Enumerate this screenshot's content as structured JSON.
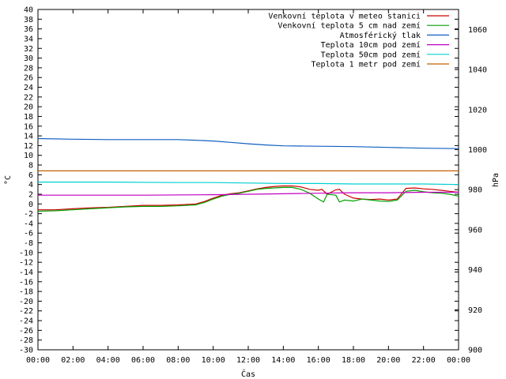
{
  "chart_data": {
    "type": "line",
    "xlabel": "Čas",
    "ylabel_left": "°C",
    "ylabel_right": "hPa",
    "x_ticks": [
      "00:00",
      "02:00",
      "04:00",
      "06:00",
      "08:00",
      "10:00",
      "12:00",
      "14:00",
      "16:00",
      "18:00",
      "20:00",
      "22:00",
      "00:00"
    ],
    "x_range_hours": [
      0,
      24
    ],
    "y_left_range": [
      -30,
      40
    ],
    "y_left_step": 2,
    "y_right_range": [
      900,
      1070
    ],
    "y_right_ticks": [
      900,
      920,
      940,
      960,
      980,
      1000,
      1020,
      1040,
      1060
    ],
    "grid": false,
    "legend_position": "top-right",
    "series": [
      {
        "name": "Venkovní teplota v meteo stanici",
        "color": "#cc0000",
        "axis": "left",
        "points": [
          [
            0,
            -1.2
          ],
          [
            1,
            -1.2
          ],
          [
            2,
            -1.0
          ],
          [
            3,
            -0.8
          ],
          [
            4,
            -0.7
          ],
          [
            5,
            -0.5
          ],
          [
            6,
            -0.3
          ],
          [
            7,
            -0.3
          ],
          [
            8,
            -0.2
          ],
          [
            9,
            0.0
          ],
          [
            9.5,
            0.5
          ],
          [
            10,
            1.2
          ],
          [
            10.5,
            1.8
          ],
          [
            11,
            2.1
          ],
          [
            11.5,
            2.3
          ],
          [
            12,
            2.7
          ],
          [
            12.5,
            3.1
          ],
          [
            13,
            3.4
          ],
          [
            13.5,
            3.6
          ],
          [
            14,
            3.7
          ],
          [
            14.5,
            3.7
          ],
          [
            15,
            3.5
          ],
          [
            15.5,
            3.0
          ],
          [
            16,
            2.8
          ],
          [
            16.2,
            3.0
          ],
          [
            16.5,
            2.0
          ],
          [
            17,
            2.9
          ],
          [
            17.2,
            3.0
          ],
          [
            17.5,
            2.0
          ],
          [
            18,
            1.2
          ],
          [
            18.5,
            1.0
          ],
          [
            19,
            0.9
          ],
          [
            19.5,
            1.0
          ],
          [
            20,
            0.8
          ],
          [
            20.5,
            1.0
          ],
          [
            21,
            3.2
          ],
          [
            21.5,
            3.3
          ],
          [
            22,
            3.1
          ],
          [
            22.5,
            3.0
          ],
          [
            23,
            2.8
          ],
          [
            23.5,
            2.6
          ],
          [
            24,
            2.4
          ]
        ]
      },
      {
        "name": "Venkovní teplota 5 cm nad zemí",
        "color": "#00a000",
        "axis": "left",
        "points": [
          [
            0,
            -1.5
          ],
          [
            1,
            -1.4
          ],
          [
            2,
            -1.2
          ],
          [
            3,
            -1.0
          ],
          [
            4,
            -0.8
          ],
          [
            5,
            -0.6
          ],
          [
            6,
            -0.5
          ],
          [
            7,
            -0.5
          ],
          [
            8,
            -0.4
          ],
          [
            9,
            -0.2
          ],
          [
            9.5,
            0.3
          ],
          [
            10,
            1.0
          ],
          [
            10.5,
            1.6
          ],
          [
            11,
            2.0
          ],
          [
            11.5,
            2.2
          ],
          [
            12,
            2.6
          ],
          [
            12.5,
            3.0
          ],
          [
            13,
            3.2
          ],
          [
            13.5,
            3.3
          ],
          [
            14,
            3.4
          ],
          [
            14.5,
            3.4
          ],
          [
            15,
            3.0
          ],
          [
            15.5,
            2.2
          ],
          [
            16,
            1.0
          ],
          [
            16.3,
            0.4
          ],
          [
            16.5,
            2.0
          ],
          [
            17,
            1.8
          ],
          [
            17.2,
            0.4
          ],
          [
            17.5,
            0.8
          ],
          [
            18,
            0.6
          ],
          [
            18.5,
            1.0
          ],
          [
            19,
            0.8
          ],
          [
            19.5,
            0.6
          ],
          [
            20,
            0.5
          ],
          [
            20.5,
            0.8
          ],
          [
            21,
            2.6
          ],
          [
            21.5,
            2.8
          ],
          [
            22,
            2.5
          ],
          [
            22.5,
            2.3
          ],
          [
            23,
            2.2
          ],
          [
            23.5,
            2.0
          ],
          [
            24,
            1.6
          ]
        ]
      },
      {
        "name": "Atmosférický tlak",
        "color": "#1060c0",
        "axis": "right",
        "points": [
          [
            0,
            1005.5
          ],
          [
            2,
            1005.2
          ],
          [
            4,
            1005.0
          ],
          [
            6,
            1005.0
          ],
          [
            8,
            1005.0
          ],
          [
            9,
            1004.7
          ],
          [
            10,
            1004.3
          ],
          [
            11,
            1003.6
          ],
          [
            12,
            1002.9
          ],
          [
            13,
            1002.3
          ],
          [
            14,
            1001.9
          ],
          [
            16,
            1001.7
          ],
          [
            18,
            1001.5
          ],
          [
            20,
            1001.1
          ],
          [
            22,
            1000.7
          ],
          [
            24,
            1000.5
          ]
        ]
      },
      {
        "name": "Teplota 10cm pod zemí",
        "color": "#c000c0",
        "axis": "left",
        "points": [
          [
            0,
            1.8
          ],
          [
            6,
            1.8
          ],
          [
            10,
            1.9
          ],
          [
            12,
            2.0
          ],
          [
            14,
            2.1
          ],
          [
            16,
            2.2
          ],
          [
            18,
            2.3
          ],
          [
            20,
            2.3
          ],
          [
            22,
            2.4
          ],
          [
            24,
            2.4
          ]
        ]
      },
      {
        "name": "Teplota 50cm pod zemí",
        "color": "#00d0d0",
        "axis": "left",
        "points": [
          [
            0,
            4.5
          ],
          [
            4,
            4.5
          ],
          [
            8,
            4.4
          ],
          [
            10,
            4.4
          ],
          [
            12,
            4.3
          ],
          [
            14,
            4.2
          ],
          [
            16,
            4.2
          ],
          [
            18,
            4.1
          ],
          [
            20,
            4.1
          ],
          [
            22,
            4.1
          ],
          [
            24,
            4.0
          ]
        ]
      },
      {
        "name": "Teplota 1 metr pod zemí",
        "color": "#c06000",
        "axis": "left",
        "points": [
          [
            0,
            6.8
          ],
          [
            24,
            6.8
          ]
        ]
      }
    ]
  }
}
